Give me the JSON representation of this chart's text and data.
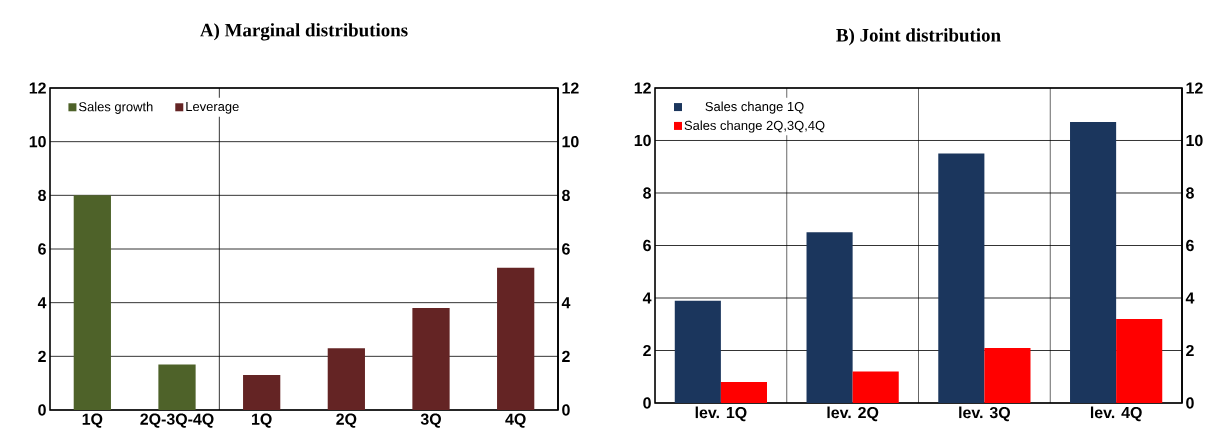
{
  "chart_data": [
    {
      "type": "bar",
      "title": "A) Marginal distributions",
      "categories": [
        "1Q",
        "2Q-3Q-4Q",
        "1Q",
        "2Q",
        "3Q",
        "4Q"
      ],
      "series": [
        {
          "name": "Sales growth",
          "color": "#4e6229",
          "values": [
            8.0,
            1.7,
            null,
            null,
            null,
            null
          ]
        },
        {
          "name": "Leverage",
          "color": "#642424",
          "values": [
            null,
            null,
            1.3,
            2.3,
            3.8,
            5.3
          ]
        }
      ],
      "ylim": [
        0,
        12
      ],
      "yticks": [
        0,
        2,
        4,
        6,
        8,
        10,
        12
      ],
      "y2lim": [
        0,
        12
      ],
      "y2ticks": [
        0,
        2,
        4,
        6,
        8,
        10,
        12
      ],
      "grid": "y",
      "legend": "top left"
    },
    {
      "type": "bar",
      "title": "B) Joint distribution",
      "categories": [
        "lev. 1Q",
        "lev. 2Q",
        "lev. 3Q",
        "lev. 4Q"
      ],
      "series": [
        {
          "name": "Sales change 1Q",
          "color": "#1b365d",
          "values": [
            3.9,
            6.5,
            9.5,
            10.7
          ]
        },
        {
          "name": "Sales change 2Q,3Q,4Q",
          "color": "#ff0000",
          "values": [
            0.8,
            1.2,
            2.1,
            3.2
          ]
        }
      ],
      "ylim": [
        0,
        12
      ],
      "yticks": [
        0,
        2,
        4,
        6,
        8,
        10,
        12
      ],
      "y2lim": [
        0,
        12
      ],
      "y2ticks": [
        0,
        2,
        4,
        6,
        8,
        10,
        12
      ],
      "grid": true,
      "legend": "top left"
    }
  ]
}
